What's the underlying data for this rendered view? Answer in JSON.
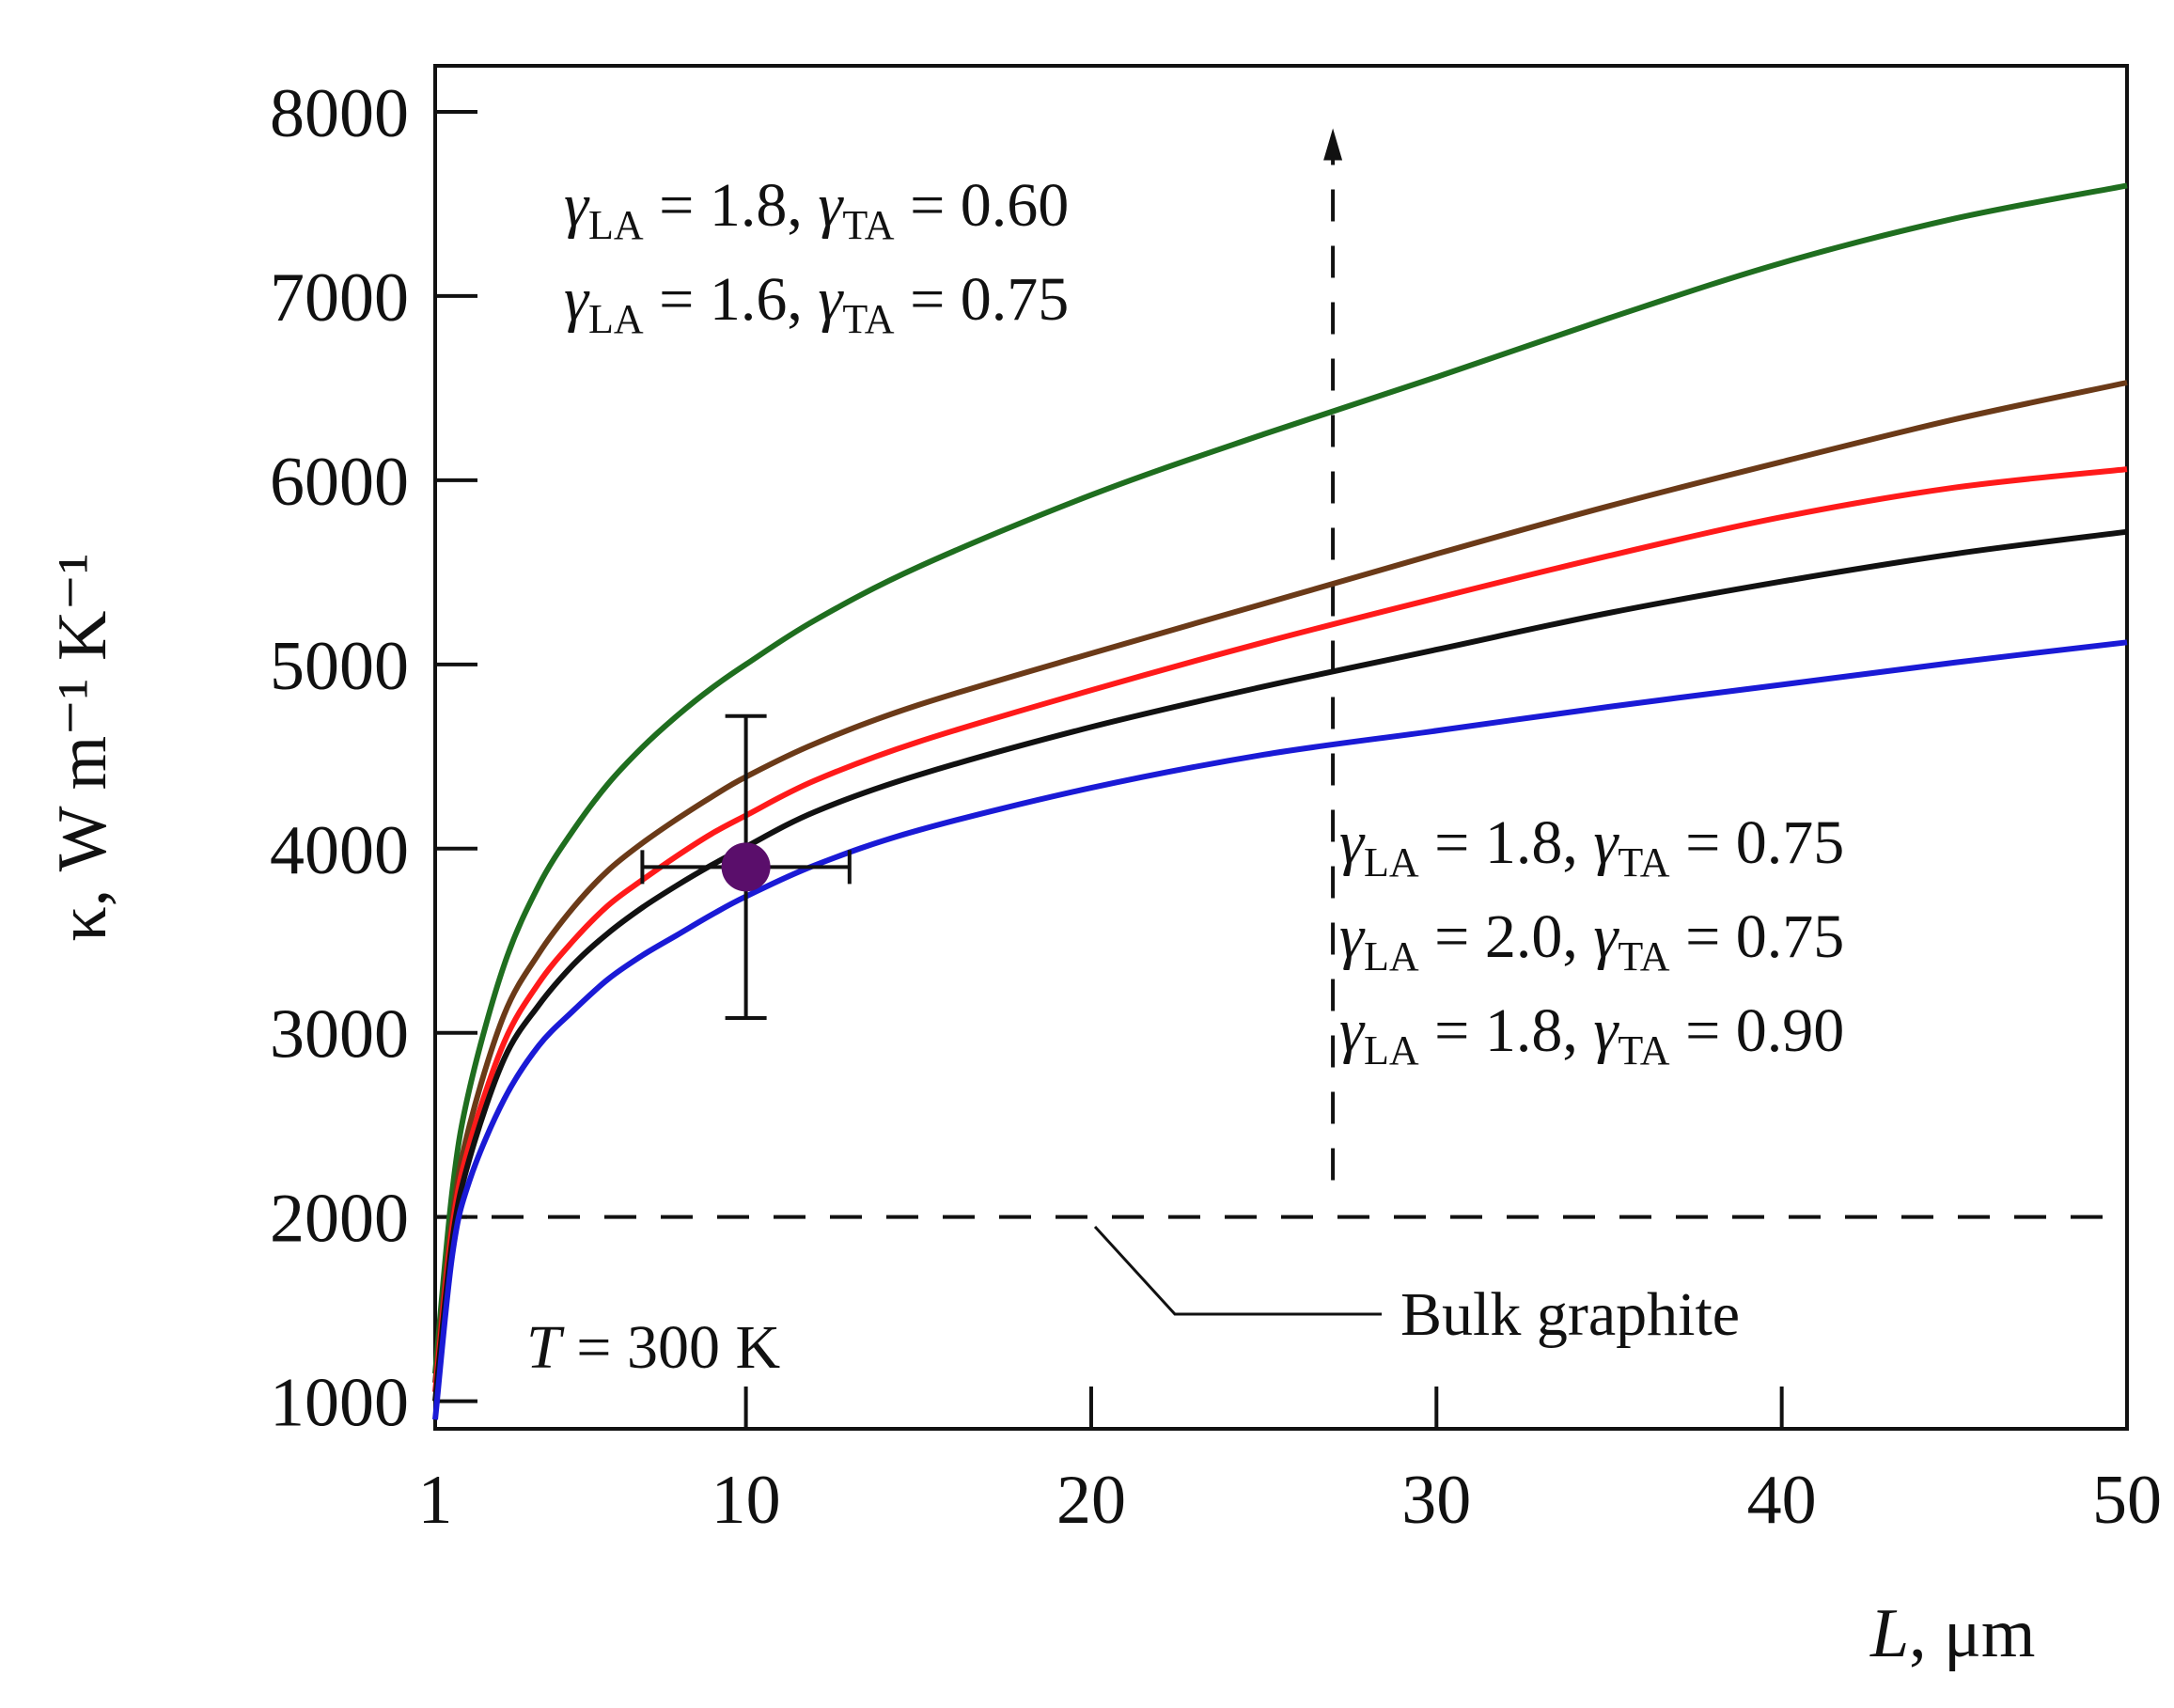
{
  "chart_data": {
    "type": "line",
    "title": "",
    "xlabel": "L, μm",
    "xlabel_var": "L",
    "xlabel_unit": ", μm",
    "ylabel": "κ, W m⁻¹ K⁻¹",
    "xlim": [
      1,
      50
    ],
    "ylim": [
      850,
      8250
    ],
    "xticks": [
      1,
      10,
      20,
      30,
      40,
      50
    ],
    "yticks": [
      1000,
      2000,
      3000,
      4000,
      5000,
      6000,
      7000,
      8000
    ],
    "x": [
      1,
      1.5,
      2,
      3,
      4,
      5,
      6,
      7,
      8,
      9,
      10,
      12,
      15,
      20,
      25,
      30,
      35,
      40,
      45,
      50
    ],
    "series": [
      {
        "name": "γLA = 1.8, γTA = 0.60",
        "color": "#1f6e1f",
        "values": [
          1150,
          2150,
          2700,
          3370,
          3800,
          4100,
          4350,
          4550,
          4720,
          4870,
          5000,
          5240,
          5530,
          5920,
          6250,
          6560,
          6880,
          7180,
          7420,
          7600
        ]
      },
      {
        "name": "γLA = 1.6, γTA = 0.75",
        "color": "#6b3a18",
        "values": [
          1100,
          2000,
          2500,
          3100,
          3430,
          3680,
          3880,
          4030,
          4160,
          4280,
          4390,
          4570,
          4780,
          5060,
          5330,
          5600,
          5860,
          6100,
          6330,
          6530
        ]
      },
      {
        "name": "γLA = 1.8, γTA = 0.75",
        "color": "#ff1a1a",
        "values": [
          1050,
          1950,
          2400,
          2950,
          3270,
          3500,
          3690,
          3830,
          3960,
          4080,
          4180,
          4370,
          4580,
          4860,
          5120,
          5360,
          5590,
          5800,
          5960,
          6060
        ]
      },
      {
        "name": "γLA = 2.0, γTA = 0.75",
        "color": "#111111",
        "values": [
          1000,
          1880,
          2320,
          2860,
          3150,
          3370,
          3540,
          3680,
          3800,
          3910,
          4010,
          4200,
          4400,
          4660,
          4880,
          5080,
          5280,
          5450,
          5600,
          5720
        ]
      },
      {
        "name": "γLA = 1.8, γTA = 0.90",
        "color": "#1a1ad6",
        "values": [
          900,
          1800,
          2200,
          2640,
          2930,
          3120,
          3290,
          3420,
          3530,
          3640,
          3740,
          3910,
          4100,
          4330,
          4510,
          4640,
          4770,
          4890,
          5010,
          5120
        ]
      }
    ],
    "experiment": {
      "x": 10,
      "y": 3900,
      "x_err": [
        7,
        13
      ],
      "y_err": [
        3080,
        4720
      ],
      "color": "#5a0e6b"
    },
    "bulk_graphite": {
      "y": 2000,
      "label": "Bulk graphite"
    },
    "arrow_line": {
      "x": 27,
      "y_from": 2200,
      "y_to": 7870
    },
    "annotations": {
      "upper": [
        {
          "ga": "1.8",
          "gt": "0.60"
        },
        {
          "ga": "1.6",
          "gt": "0.75"
        }
      ],
      "lower": [
        {
          "ga": "1.8",
          "gt": "0.75"
        },
        {
          "ga": "2.0",
          "gt": "0.75"
        },
        {
          "ga": "1.8",
          "gt": "0.90"
        }
      ],
      "temperature_var": "T",
      "temperature_text": " = 300 K"
    },
    "legend": "none"
  }
}
